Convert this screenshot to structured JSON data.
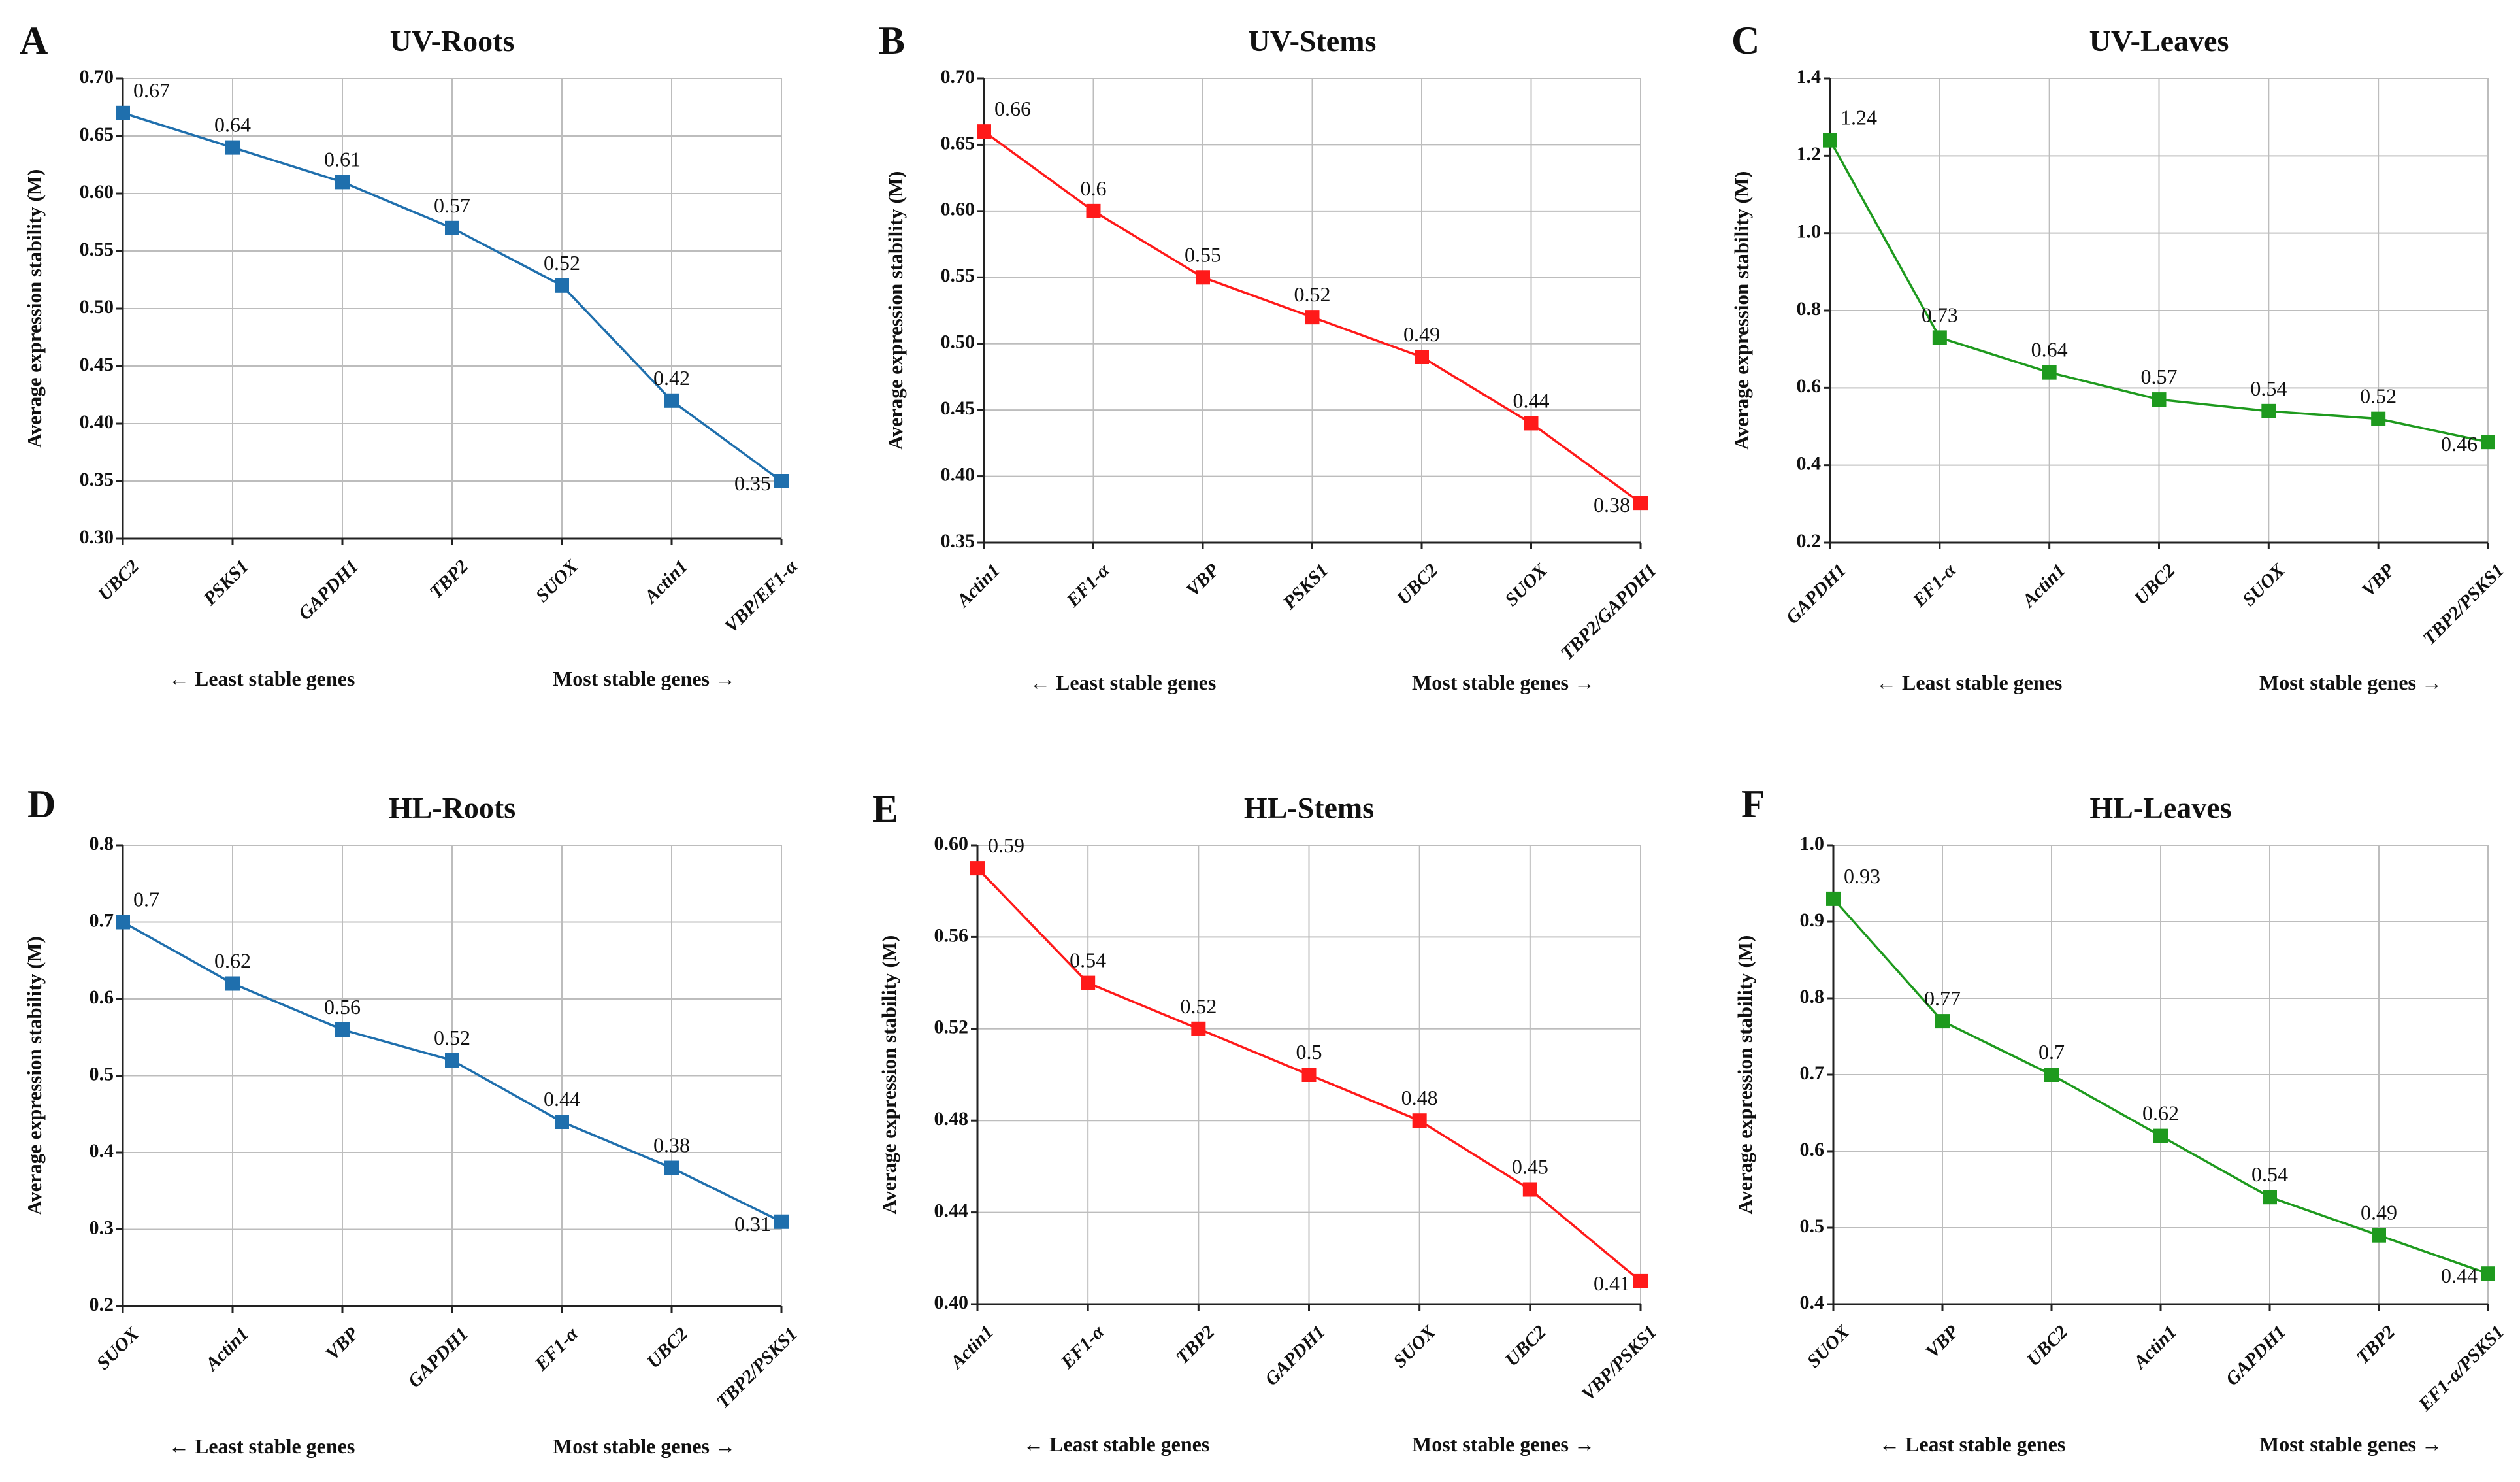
{
  "figure": {
    "ylabel": "Average expression stability (M)",
    "left_note": "← Least stable genes",
    "right_note": "Most stable genes →"
  },
  "chart_data": [
    {
      "type": "line",
      "letter": "A",
      "title": "UV-Roots",
      "color": "#1f6fad",
      "ylabel": "Average expression stability (M)",
      "categories": [
        "UBC2",
        "PSKS1",
        "GAPDH1",
        "TBP2",
        "SUOX",
        "Actin1",
        "VBP/EF1-α"
      ],
      "values": [
        0.67,
        0.64,
        0.61,
        0.57,
        0.52,
        0.42,
        0.35
      ],
      "value_labels": [
        "0.67",
        "0.64",
        "0.61",
        "0.57",
        "0.52",
        "0.42",
        "0.35"
      ],
      "ylim": [
        0.3,
        0.7
      ],
      "yticks": [
        0.3,
        0.35,
        0.4,
        0.45,
        0.5,
        0.55,
        0.6,
        0.65,
        0.7
      ],
      "ytick_labels": [
        "0.30",
        "0.35",
        "0.40",
        "0.45",
        "0.50",
        "0.55",
        "0.60",
        "0.65",
        "0.70"
      ],
      "grid": true
    },
    {
      "type": "line",
      "letter": "B",
      "title": "UV-Stems",
      "color": "#ff1a1a",
      "ylabel": "Average expression stability (M)",
      "categories": [
        "Actin1",
        "EF1-α",
        "VBP",
        "PSKS1",
        "UBC2",
        "SUOX",
        "TBP2/GAPDH1"
      ],
      "values": [
        0.66,
        0.6,
        0.55,
        0.52,
        0.49,
        0.44,
        0.38
      ],
      "value_labels": [
        "0.66",
        "0.6",
        "0.55",
        "0.52",
        "0.49",
        "0.44",
        "0.38"
      ],
      "ylim": [
        0.35,
        0.7
      ],
      "yticks": [
        0.35,
        0.4,
        0.45,
        0.5,
        0.55,
        0.6,
        0.65,
        0.7
      ],
      "ytick_labels": [
        "0.35",
        "0.40",
        "0.45",
        "0.50",
        "0.55",
        "0.60",
        "0.65",
        "0.70"
      ],
      "grid": true
    },
    {
      "type": "line",
      "letter": "C",
      "title": "UV-Leaves",
      "color": "#1e9a1e",
      "ylabel": "Average expression stability (M)",
      "categories": [
        "GAPDH1",
        "EF1-α",
        "Actin1",
        "UBC2",
        "SUOX",
        "VBP",
        "TBP2/PSKS1"
      ],
      "values": [
        1.24,
        0.73,
        0.64,
        0.57,
        0.54,
        0.52,
        0.46
      ],
      "value_labels": [
        "1.24",
        "0.73",
        "0.64",
        "0.57",
        "0.54",
        "0.52",
        "0.46"
      ],
      "ylim": [
        0.2,
        1.4
      ],
      "yticks": [
        0.2,
        0.4,
        0.6,
        0.8,
        1.0,
        1.2,
        1.4
      ],
      "ytick_labels": [
        "0.2",
        "0.4",
        "0.6",
        "0.8",
        "1.0",
        "1.2",
        "1.4"
      ],
      "grid": true
    },
    {
      "type": "line",
      "letter": "D",
      "title": "HL-Roots",
      "color": "#1f6fad",
      "ylabel": "Average expression stability (M)",
      "categories": [
        "SUOX",
        "Actin1",
        "VBP",
        "GAPDH1",
        "EF1-α",
        "UBC2",
        "TBP2/PSKS1"
      ],
      "values": [
        0.7,
        0.62,
        0.56,
        0.52,
        0.44,
        0.38,
        0.31
      ],
      "value_labels": [
        "0.7",
        "0.62",
        "0.56",
        "0.52",
        "0.44",
        "0.38",
        "0.31"
      ],
      "ylim": [
        0.2,
        0.8
      ],
      "yticks": [
        0.2,
        0.3,
        0.4,
        0.5,
        0.6,
        0.7,
        0.8
      ],
      "ytick_labels": [
        "0.2",
        "0.3",
        "0.4",
        "0.5",
        "0.6",
        "0.7",
        "0.8"
      ],
      "grid": true
    },
    {
      "type": "line",
      "letter": "E",
      "title": "HL-Stems",
      "color": "#ff1a1a",
      "ylabel": "Average expression stability (M)",
      "categories": [
        "Actin1",
        "EF1-α",
        "TBP2",
        "GAPDH1",
        "SUOX",
        "UBC2",
        "VBP/PSKS1"
      ],
      "values": [
        0.59,
        0.54,
        0.52,
        0.5,
        0.48,
        0.45,
        0.41
      ],
      "value_labels": [
        "0.59",
        "0.54",
        "0.52",
        "0.5",
        "0.48",
        "0.45",
        "0.41"
      ],
      "ylim": [
        0.4,
        0.6
      ],
      "yticks": [
        0.4,
        0.44,
        0.48,
        0.52,
        0.56,
        0.6
      ],
      "ytick_labels": [
        "0.40",
        "0.44",
        "0.48",
        "0.52",
        "0.56",
        "0.60"
      ],
      "grid": true
    },
    {
      "type": "line",
      "letter": "F",
      "title": "HL-Leaves",
      "color": "#1e9a1e",
      "ylabel": "Average expression stability (M)",
      "categories": [
        "SUOX",
        "VBP",
        "UBC2",
        "Actin1",
        "GAPDH1",
        "TBP2",
        "EF1-α/PSKS1"
      ],
      "values": [
        0.93,
        0.77,
        0.7,
        0.62,
        0.54,
        0.49,
        0.44
      ],
      "value_labels": [
        "0.93",
        "0.77",
        "0.7",
        "0.62",
        "0.54",
        "0.49",
        "0.44"
      ],
      "ylim": [
        0.4,
        1.0
      ],
      "yticks": [
        0.4,
        0.5,
        0.6,
        0.7,
        0.8,
        0.9,
        1.0
      ],
      "ytick_labels": [
        "0.4",
        "0.5",
        "0.6",
        "0.7",
        "0.8",
        "0.9",
        "1.0"
      ],
      "grid": true
    }
  ]
}
